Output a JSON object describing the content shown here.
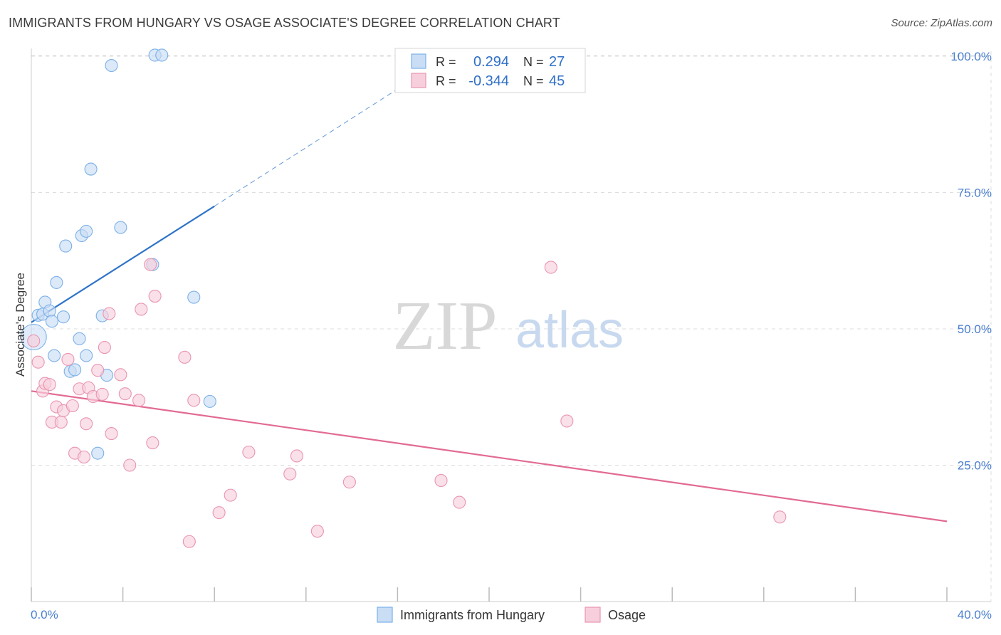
{
  "title": "IMMIGRANTS FROM HUNGARY VS OSAGE ASSOCIATE'S DEGREE CORRELATION CHART",
  "source": "Source: ZipAtlas.com",
  "watermark": {
    "zip": "ZIP",
    "atlas": "atlas"
  },
  "colors": {
    "blue": "#7bb0e8",
    "blue_fill": "#c9ddf5",
    "blue_line": "#2f74c8",
    "pink": "#e995b0",
    "pink_fill": "#f7cfdc",
    "pink_line": "#e26a93",
    "tick_label": "#4a7fcf",
    "grid": "#dddddd"
  },
  "legend": {
    "r_label": "R =",
    "n_label": "N =",
    "rows": [
      {
        "r": "0.294",
        "n": "27",
        "color": "blue"
      },
      {
        "r": "-0.344",
        "n": "45",
        "color": "pink"
      }
    ]
  },
  "bottom_legend": [
    "Immigrants from Hungary",
    "Osage"
  ],
  "chart_data": {
    "type": "scatter",
    "title": "IMMIGRANTS FROM HUNGARY VS OSAGE ASSOCIATE'S DEGREE CORRELATION CHART",
    "xlabel": "",
    "ylabel": "Associate's Degree",
    "xlim": [
      0,
      40
    ],
    "ylim": [
      0,
      100
    ],
    "x_tick_labels": [
      "0.0%",
      "40.0%"
    ],
    "y_ticks": [
      25,
      50,
      75,
      100
    ],
    "y_tick_labels": [
      "25.0%",
      "50.0%",
      "75.0%",
      "100.0%"
    ],
    "grid": true,
    "series": [
      {
        "name": "Immigrants from Hungary",
        "color": "blue",
        "points": [
          [
            0.1,
            48.5
          ],
          [
            0.3,
            52.5
          ],
          [
            0.5,
            52.7
          ],
          [
            0.6,
            54.9
          ],
          [
            0.8,
            53.3
          ],
          [
            0.9,
            51.4
          ],
          [
            1.0,
            45.1
          ],
          [
            1.1,
            58.5
          ],
          [
            1.4,
            52.2
          ],
          [
            1.5,
            65.2
          ],
          [
            1.7,
            42.2
          ],
          [
            1.9,
            42.5
          ],
          [
            2.1,
            48.2
          ],
          [
            2.2,
            67.1
          ],
          [
            2.4,
            45.1
          ],
          [
            2.4,
            67.9
          ],
          [
            2.6,
            79.3
          ],
          [
            2.9,
            27.2
          ],
          [
            3.1,
            52.4
          ],
          [
            3.3,
            41.5
          ],
          [
            3.5,
            98.3
          ],
          [
            3.9,
            68.6
          ],
          [
            5.3,
            61.8
          ],
          [
            5.4,
            100.2
          ],
          [
            5.7,
            100.2
          ],
          [
            7.1,
            55.8
          ],
          [
            7.8,
            36.7
          ]
        ],
        "trend": {
          "x1": 0,
          "y1": 51.2,
          "x2": 8.0,
          "y2": 72.5,
          "dash_to_x": 17.5,
          "dash_to_y": 98.0
        }
      },
      {
        "name": "Osage",
        "color": "pink",
        "points": [
          [
            0.1,
            47.8
          ],
          [
            0.3,
            43.9
          ],
          [
            0.5,
            38.6
          ],
          [
            0.6,
            40.0
          ],
          [
            0.8,
            39.8
          ],
          [
            0.9,
            32.9
          ],
          [
            1.1,
            35.7
          ],
          [
            1.3,
            32.9
          ],
          [
            1.4,
            35.0
          ],
          [
            1.6,
            44.4
          ],
          [
            1.8,
            35.9
          ],
          [
            1.9,
            27.2
          ],
          [
            2.1,
            39.0
          ],
          [
            2.3,
            26.5
          ],
          [
            2.4,
            32.6
          ],
          [
            2.5,
            39.2
          ],
          [
            2.7,
            37.6
          ],
          [
            2.9,
            42.4
          ],
          [
            3.1,
            38.0
          ],
          [
            3.2,
            46.6
          ],
          [
            3.4,
            52.8
          ],
          [
            3.5,
            30.8
          ],
          [
            3.9,
            41.6
          ],
          [
            4.1,
            38.1
          ],
          [
            4.3,
            25.0
          ],
          [
            4.7,
            36.9
          ],
          [
            4.8,
            53.6
          ],
          [
            5.2,
            61.8
          ],
          [
            5.3,
            29.1
          ],
          [
            5.4,
            56.0
          ],
          [
            6.7,
            44.8
          ],
          [
            6.9,
            11.0
          ],
          [
            7.1,
            36.9
          ],
          [
            8.2,
            16.3
          ],
          [
            8.7,
            19.5
          ],
          [
            9.5,
            27.4
          ],
          [
            11.3,
            23.4
          ],
          [
            11.6,
            26.7
          ],
          [
            12.5,
            12.9
          ],
          [
            13.9,
            21.9
          ],
          [
            17.9,
            22.2
          ],
          [
            18.7,
            18.2
          ],
          [
            22.7,
            61.3
          ],
          [
            23.4,
            33.1
          ],
          [
            32.7,
            15.5
          ]
        ],
        "trend": {
          "x1": 0,
          "y1": 38.6,
          "x2": 40,
          "y2": 14.7
        }
      }
    ]
  }
}
